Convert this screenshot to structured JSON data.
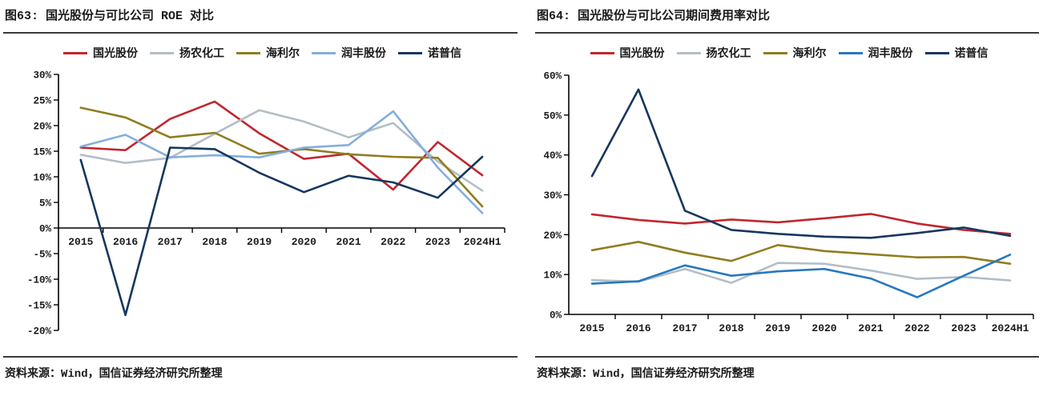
{
  "panels": [
    {
      "title": "图63: 国光股份与可比公司 ROE 对比",
      "source": "资料来源：Wind，国信证券经济研究所整理"
    },
    {
      "title": "图64: 国光股份与可比公司期间费用率对比",
      "source": "资料来源：Wind，国信证券经济研究所整理"
    }
  ],
  "chart_data": [
    {
      "type": "line",
      "title": "图63: 国光股份与可比公司 ROE 对比",
      "categories": [
        "2015",
        "2016",
        "2017",
        "2018",
        "2019",
        "2020",
        "2021",
        "2022",
        "2023",
        "2024H1"
      ],
      "series": [
        {
          "name": "国光股份",
          "color": "#c2262e",
          "values": [
            15.7,
            15.2,
            21.3,
            24.7,
            18.5,
            13.5,
            14.5,
            7.5,
            16.8,
            10.3
          ]
        },
        {
          "name": "扬农化工",
          "color": "#b3bec6",
          "values": [
            14.3,
            12.7,
            13.7,
            18.4,
            23.0,
            20.8,
            17.7,
            20.5,
            13.0,
            7.3
          ]
        },
        {
          "name": "海利尔",
          "color": "#8f7d20",
          "values": [
            23.5,
            21.6,
            17.7,
            18.6,
            14.5,
            15.4,
            14.4,
            13.9,
            13.7,
            4.2
          ]
        },
        {
          "name": "润丰股份",
          "color": "#84aedd",
          "values": [
            15.9,
            18.2,
            13.8,
            14.2,
            13.8,
            15.7,
            16.2,
            22.8,
            11.8,
            2.9
          ]
        },
        {
          "name": "诺普信",
          "color": "#17375e",
          "values": [
            13.3,
            -17.0,
            15.7,
            15.4,
            10.8,
            7.0,
            10.2,
            8.9,
            5.9,
            13.9
          ]
        }
      ],
      "ylim": [
        -20,
        30
      ],
      "ytick_step": 5,
      "unit": "%",
      "grid": false,
      "legend_position": "top"
    },
    {
      "type": "line",
      "title": "图64: 国光股份与可比公司期间费用率对比",
      "categories": [
        "2015",
        "2016",
        "2017",
        "2018",
        "2019",
        "2020",
        "2021",
        "2022",
        "2023",
        "2024H1"
      ],
      "series": [
        {
          "name": "国光股份",
          "color": "#c2262e",
          "values": [
            25.1,
            23.7,
            22.8,
            23.8,
            23.1,
            24.1,
            25.2,
            22.8,
            21.2,
            20.2
          ]
        },
        {
          "name": "扬农化工",
          "color": "#b3bec6",
          "values": [
            8.6,
            8.2,
            11.4,
            7.9,
            12.9,
            12.7,
            11.0,
            8.9,
            9.4,
            8.5
          ]
        },
        {
          "name": "海利尔",
          "color": "#8f7d20",
          "values": [
            16.1,
            18.2,
            15.5,
            13.4,
            17.4,
            15.9,
            15.1,
            14.3,
            14.4,
            12.7
          ]
        },
        {
          "name": "润丰股份",
          "color": "#2878be",
          "values": [
            7.7,
            8.3,
            12.3,
            9.7,
            10.8,
            11.4,
            9.0,
            4.3,
            9.7,
            15.0
          ]
        },
        {
          "name": "诺普信",
          "color": "#17375e",
          "values": [
            34.7,
            56.4,
            26.0,
            21.2,
            20.2,
            19.5,
            19.2,
            20.4,
            21.8,
            19.7
          ]
        }
      ],
      "ylim": [
        0,
        60
      ],
      "ytick_step": 10,
      "unit": "%",
      "grid": false,
      "legend_position": "top"
    }
  ]
}
